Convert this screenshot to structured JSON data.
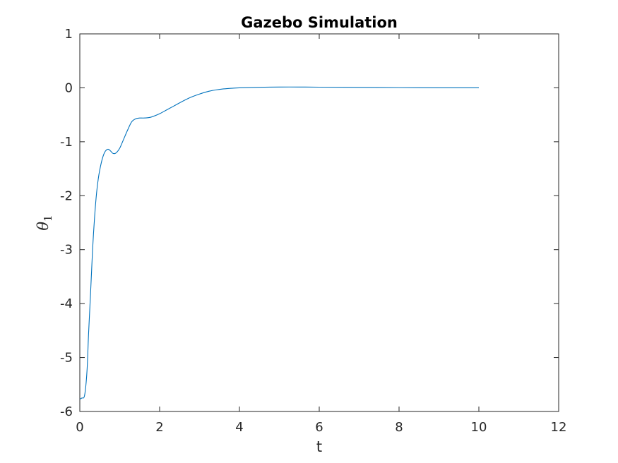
{
  "chart_data": {
    "type": "line",
    "title": "Gazebo Simulation",
    "xlabel": "t",
    "ylabel": "θ",
    "ylabel_subscript": "1",
    "xlim": [
      0,
      12
    ],
    "ylim": [
      -6,
      1
    ],
    "xticks": [
      0,
      2,
      4,
      6,
      8,
      10,
      12
    ],
    "yticks": [
      -6,
      -5,
      -4,
      -3,
      -2,
      -1,
      0,
      1
    ],
    "grid": false,
    "line_color": "#0072bd",
    "series": [
      {
        "x": [
          0,
          0.05,
          0.12,
          0.18,
          0.22,
          0.27,
          0.32,
          0.37,
          0.42,
          0.47,
          0.52,
          0.57,
          0.62,
          0.67,
          0.72,
          0.77,
          0.82,
          0.87,
          0.92,
          1.0,
          1.1,
          1.2,
          1.3,
          1.4,
          1.5,
          1.6,
          1.7,
          1.8,
          2.0,
          2.2,
          2.4,
          2.6,
          2.8,
          3.0,
          3.2,
          3.4,
          3.6,
          3.8,
          4.0,
          4.5,
          5.0,
          5.5,
          6.0,
          7.0,
          8.0,
          9.0,
          10.0
        ],
        "y": [
          -5.77,
          -5.75,
          -5.7,
          -5.25,
          -4.55,
          -3.8,
          -3.0,
          -2.4,
          -1.95,
          -1.65,
          -1.45,
          -1.3,
          -1.2,
          -1.15,
          -1.14,
          -1.17,
          -1.21,
          -1.22,
          -1.2,
          -1.12,
          -0.95,
          -0.78,
          -0.63,
          -0.575,
          -0.56,
          -0.56,
          -0.555,
          -0.54,
          -0.48,
          -0.4,
          -0.32,
          -0.24,
          -0.17,
          -0.115,
          -0.07,
          -0.04,
          -0.02,
          -0.008,
          0.0,
          0.01,
          0.015,
          0.015,
          0.012,
          0.008,
          0.004,
          0.0,
          0.0
        ]
      }
    ]
  }
}
